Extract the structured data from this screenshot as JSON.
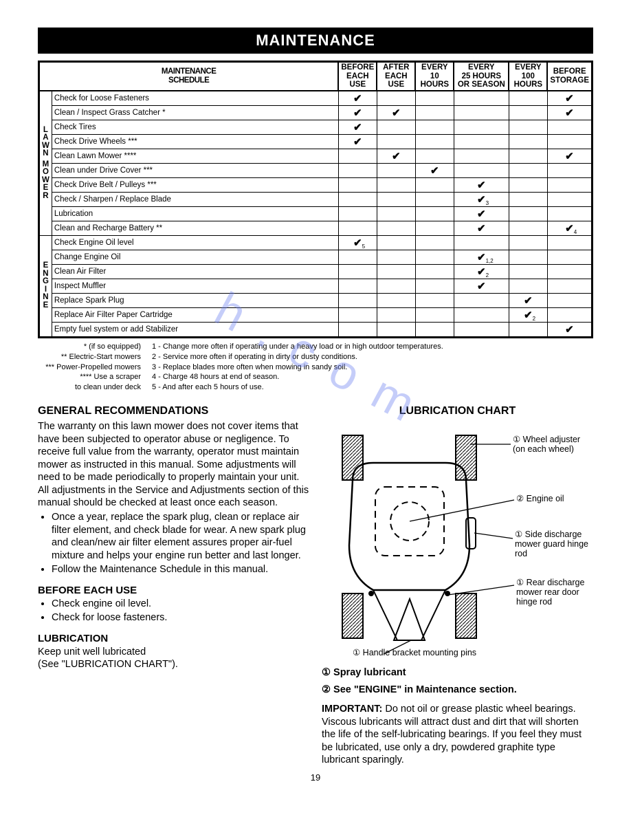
{
  "banner": "MAINTENANCE",
  "schedule_title_l1": "MAINTENANCE",
  "schedule_title_l2": "SCHEDULE",
  "columns": [
    "BEFORE\nEACH\nUSE",
    "AFTER\nEACH\nUSE",
    "EVERY\n10\nHOURS",
    "EVERY\n25 HOURS\nOR SEASON",
    "EVERY\n100\nHOURS",
    "BEFORE\nSTORAGE"
  ],
  "lawn_label": "LAWN MOWER",
  "engine_label": "ENGINE",
  "lawn_rows": [
    {
      "task": "Check for Loose Fasteners",
      "c": [
        1,
        0,
        0,
        0,
        0,
        1
      ],
      "sub": [
        "",
        "",
        "",
        "",
        "",
        ""
      ]
    },
    {
      "task": "Clean / Inspect Grass Catcher *",
      "c": [
        1,
        1,
        0,
        0,
        0,
        1
      ],
      "sub": [
        "",
        "",
        "",
        "",
        "",
        ""
      ]
    },
    {
      "task": "Check Tires",
      "c": [
        1,
        0,
        0,
        0,
        0,
        0
      ],
      "sub": [
        "",
        "",
        "",
        "",
        "",
        ""
      ]
    },
    {
      "task": "Check Drive Wheels ***",
      "c": [
        1,
        0,
        0,
        0,
        0,
        0
      ],
      "sub": [
        "",
        "",
        "",
        "",
        "",
        ""
      ]
    },
    {
      "task": "Clean Lawn Mower ****",
      "c": [
        0,
        1,
        0,
        0,
        0,
        1
      ],
      "sub": [
        "",
        "",
        "",
        "",
        "",
        ""
      ]
    },
    {
      "task": "Clean under Drive Cover ***",
      "c": [
        0,
        0,
        1,
        0,
        0,
        0
      ],
      "sub": [
        "",
        "",
        "",
        "",
        "",
        ""
      ]
    },
    {
      "task": "Check Drive Belt / Pulleys ***",
      "c": [
        0,
        0,
        0,
        1,
        0,
        0
      ],
      "sub": [
        "",
        "",
        "",
        "",
        "",
        ""
      ]
    },
    {
      "task": "Check / Sharpen / Replace Blade",
      "c": [
        0,
        0,
        0,
        1,
        0,
        0
      ],
      "sub": [
        "",
        "",
        "",
        "3",
        "",
        ""
      ]
    },
    {
      "task": "Lubrication",
      "c": [
        0,
        0,
        0,
        1,
        0,
        0
      ],
      "sub": [
        "",
        "",
        "",
        "",
        "",
        ""
      ]
    },
    {
      "task": "Clean and Recharge Battery **",
      "c": [
        0,
        0,
        0,
        1,
        0,
        1
      ],
      "sub": [
        "",
        "",
        "",
        "",
        "",
        "4"
      ]
    }
  ],
  "engine_rows": [
    {
      "task": "Check Engine Oil level",
      "c": [
        1,
        0,
        0,
        0,
        0,
        0
      ],
      "sub": [
        "5",
        "",
        "",
        "",
        "",
        ""
      ]
    },
    {
      "task": "Change Engine Oil",
      "c": [
        0,
        0,
        0,
        1,
        0,
        0
      ],
      "sub": [
        "",
        "",
        "",
        "1,2",
        "",
        ""
      ]
    },
    {
      "task": "Clean Air Filter",
      "c": [
        0,
        0,
        0,
        1,
        0,
        0
      ],
      "sub": [
        "",
        "",
        "",
        "2",
        "",
        ""
      ]
    },
    {
      "task": "Inspect Muffler",
      "c": [
        0,
        0,
        0,
        1,
        0,
        0
      ],
      "sub": [
        "",
        "",
        "",
        "",
        "",
        ""
      ]
    },
    {
      "task": "Replace Spark Plug",
      "c": [
        0,
        0,
        0,
        0,
        1,
        0
      ],
      "sub": [
        "",
        "",
        "",
        "",
        "",
        ""
      ]
    },
    {
      "task": "Replace Air Filter Paper Cartridge",
      "c": [
        0,
        0,
        0,
        0,
        1,
        0
      ],
      "sub": [
        "",
        "",
        "",
        "",
        "2",
        ""
      ]
    },
    {
      "task": "Empty fuel system or add Stabilizer",
      "c": [
        0,
        0,
        0,
        0,
        0,
        1
      ],
      "sub": [
        "",
        "",
        "",
        "",
        "",
        ""
      ]
    }
  ],
  "footnotes_left": [
    "* (if so equipped)",
    "** Electric-Start mowers",
    "*** Power-Propelled mowers",
    "**** Use a scraper",
    "to clean under deck"
  ],
  "footnotes_right": [
    "1 - Change more often if operating under a heavy load or in high outdoor temperatures.",
    "2 - Service more often if operating in dirty or dusty conditions.",
    "3 - Replace blades more often when mowing in sandy soil.",
    "4 - Charge 48 hours at end of season.",
    "5 - And after each 5 hours of use."
  ],
  "gen_rec_heading": "GENERAL RECOMMENDATIONS",
  "gen_rec_para": "The warranty on this lawn mower does not cover items that have been subjected to operator abuse or negligence. To receive full value from the warranty, operator must maintain mower as instructed in this manual. Some adjustments will need to be made periodically to properly maintain your unit. All adjustments in the Service and Adjustments section of this manual should be checked at least once each season.",
  "gen_rec_bullets": [
    "Once a year, replace the spark plug, clean or replace air filter element, and check blade for wear. A new spark plug and clean/new air filter element assures proper air-fuel mixture and helps your engine run better and last longer.",
    "Follow the Maintenance Schedule in this manual."
  ],
  "before_heading": "BEFORE EACH USE",
  "before_bullets": [
    "Check engine oil level.",
    "Check for loose fasteners."
  ],
  "lubri_heading": "LUBRICATION",
  "lubri_text_l1": "Keep unit well lubricated",
  "lubri_text_l2": "(See \"LUBRICATION CHART\").",
  "lubri_chart_heading": "LUBRICATION CHART",
  "callout_wheel": "① Wheel adjuster (on each wheel)",
  "callout_engine": "② Engine oil",
  "callout_side": "① Side discharge mower guard hinge rod",
  "callout_rear": "① Rear discharge mower rear door hinge rod",
  "callout_handle": "① Handle bracket mounting pins",
  "legend_1": "① Spray lubricant",
  "legend_2": "② See \"ENGINE\" in Maintenance section.",
  "important_label": "IMPORTANT:",
  "important_text": "  Do not oil or grease plastic wheel bearings. Viscous lubricants will attract dust and dirt that will shorten the life of the self-lubricating bearings. If you feel they must be lubricated, use only a dry, powdered graphite type lubricant sparingly.",
  "page_number": "19",
  "watermark_text": "h   .  c o m"
}
